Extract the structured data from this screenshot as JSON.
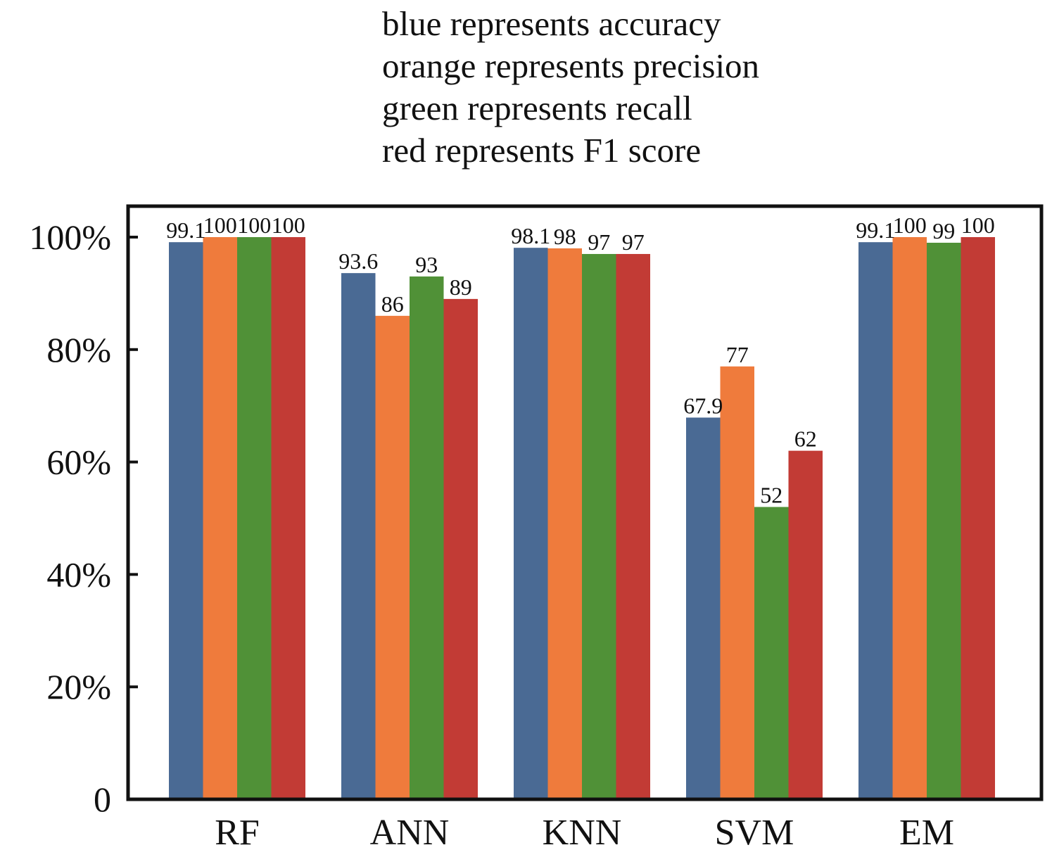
{
  "legend_notes": [
    "blue represents accuracy",
    "orange represents precision",
    "green represents recall",
    "red represents F1 score"
  ],
  "colors": {
    "accuracy": "#4a6a94",
    "precision": "#ef7b3c",
    "recall": "#509137",
    "f1": "#c23b35"
  },
  "chart_data": {
    "type": "bar",
    "categories": [
      "RF",
      "ANN",
      "KNN",
      "SVM",
      "EM"
    ],
    "series": [
      {
        "key": "accuracy",
        "values": [
          99.1,
          93.6,
          98.1,
          67.9,
          99.1
        ],
        "labels": [
          "99.1",
          "93.6",
          "98.1",
          "67.9",
          "99.1"
        ]
      },
      {
        "key": "precision",
        "values": [
          100,
          86,
          98,
          77,
          100
        ],
        "labels": [
          "100",
          "86",
          "98",
          "77",
          "100"
        ]
      },
      {
        "key": "recall",
        "values": [
          100,
          93,
          97,
          52,
          99
        ],
        "labels": [
          "100",
          "93",
          "97",
          "52",
          "99"
        ]
      },
      {
        "key": "f1",
        "values": [
          100,
          89,
          97,
          62,
          100
        ],
        "labels": [
          "100",
          "89",
          "97",
          "62",
          "100"
        ]
      }
    ],
    "ylim": [
      0,
      100
    ],
    "yticks": [
      0,
      20,
      40,
      60,
      80,
      100
    ],
    "ytick_labels": [
      "0",
      "20%",
      "40%",
      "60%",
      "80%",
      "100%"
    ],
    "legend": "above",
    "grid": false
  }
}
